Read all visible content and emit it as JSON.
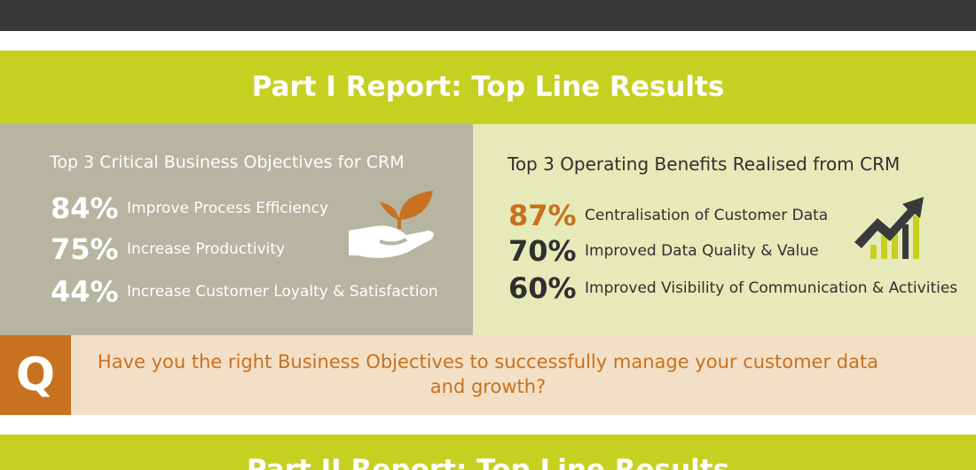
{
  "header": {
    "title": "Part I Report: Top Line Results"
  },
  "objectives": {
    "title": "Top 3 Critical Business Objectives for CRM",
    "icon": "hand-plant-icon",
    "items": [
      {
        "pct": "84%",
        "label": "Improve Process Efficiency"
      },
      {
        "pct": "75%",
        "label": "Increase Productivity"
      },
      {
        "pct": "44%",
        "label": "Increase Customer Loyalty & Satisfaction"
      }
    ]
  },
  "benefits": {
    "title": "Top 3 Operating Benefits Realised from CRM",
    "icon": "growth-chart-arrow-icon",
    "items": [
      {
        "pct": "87%",
        "label": "Centralisation of Customer Data"
      },
      {
        "pct": "70%",
        "label": "Improved Data Quality & Value"
      },
      {
        "pct": "60%",
        "label": "Improved Visibility of Communication & Activities"
      }
    ]
  },
  "question": {
    "badge": "Q",
    "text": "Have you the right Business Objectives to successfully manage your customer data and growth?"
  },
  "next_section": {
    "title": "Part II Report: Top Line Results"
  },
  "colors": {
    "green": "#c6d021",
    "orange": "#c8711f",
    "dark": "#3a3a3c",
    "grey_panel": "#b5b5a1",
    "light_panel": "#e6eab8",
    "peach": "#f3dfc5"
  }
}
